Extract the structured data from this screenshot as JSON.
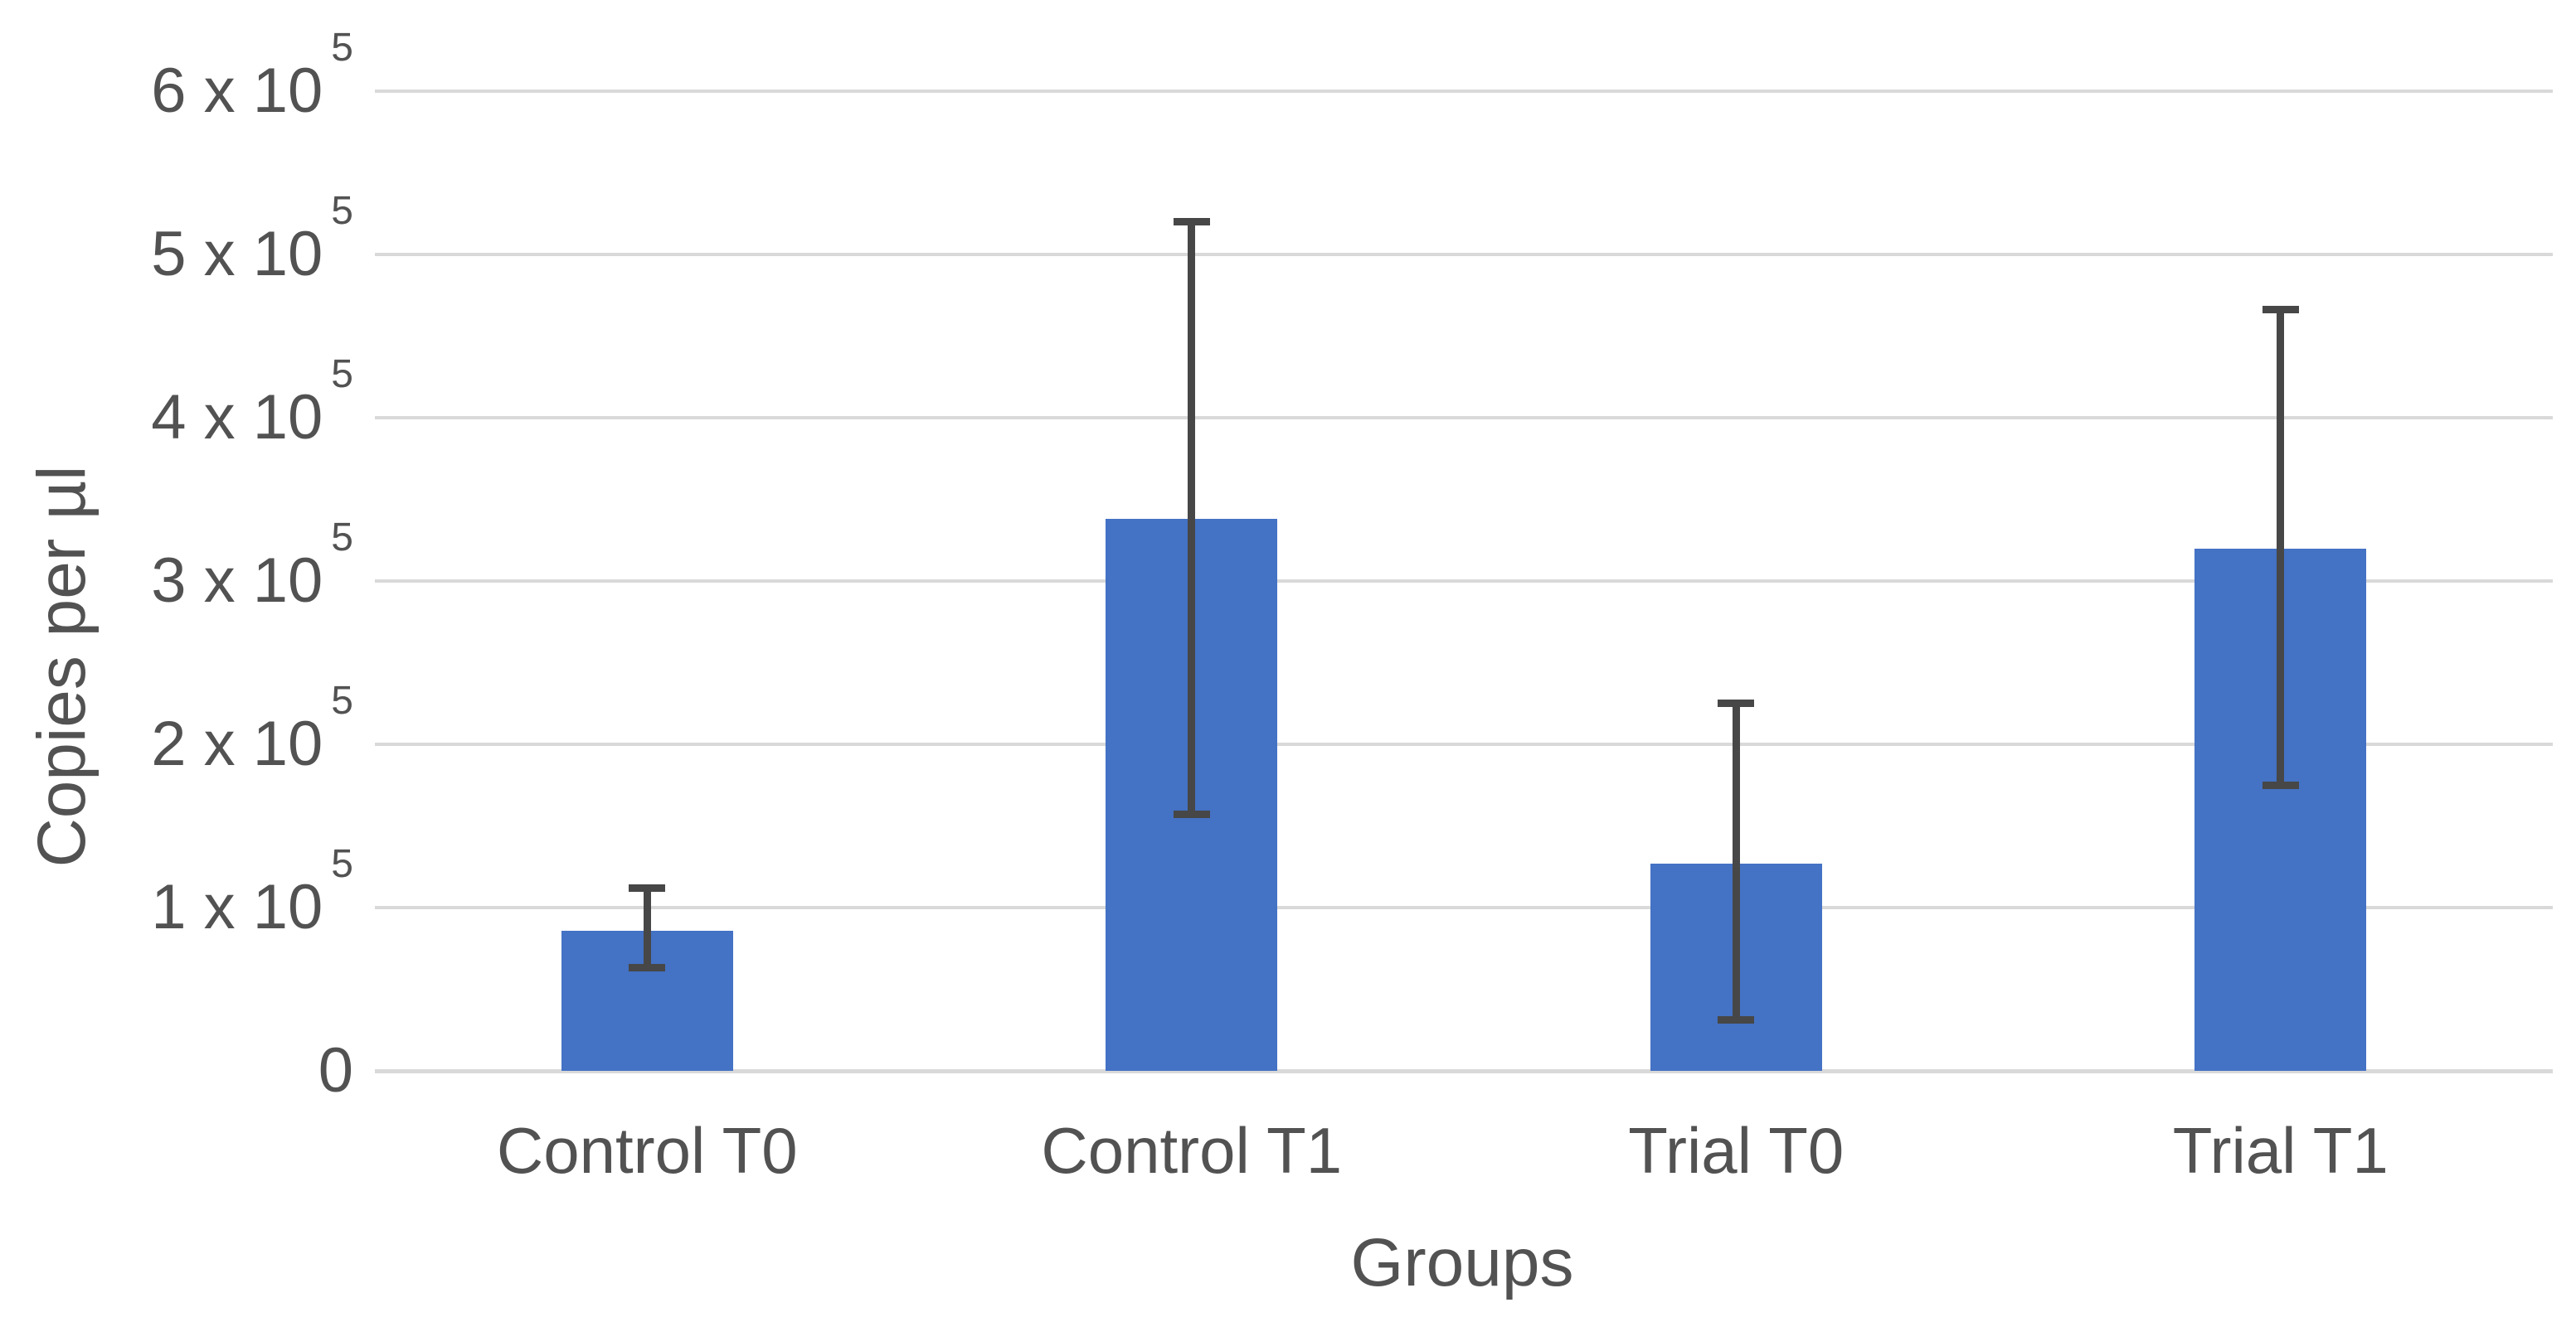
{
  "chart_data": {
    "type": "bar",
    "title": "",
    "xlabel": "Groups",
    "ylabel": "Copies per µl",
    "categories": [
      "Control T0",
      "Control T1",
      "Trial T0",
      "Trial T1"
    ],
    "values": [
      86000,
      338000,
      127000,
      320000
    ],
    "error_bars": {
      "upper": [
        112000,
        520000,
        225000,
        466000
      ],
      "lower": [
        63000,
        157000,
        31000,
        175000
      ]
    },
    "ylim": [
      0,
      600000
    ],
    "ytick_step": 100000,
    "yticks": [
      {
        "text": "0",
        "sup": ""
      },
      {
        "text": "1 x 10",
        "sup": "5"
      },
      {
        "text": "2 x 10",
        "sup": "5"
      },
      {
        "text": "3 x 10",
        "sup": "5"
      },
      {
        "text": "4 x 10",
        "sup": "5"
      },
      {
        "text": "5 x 10",
        "sup": "5"
      },
      {
        "text": "6 x 10",
        "sup": "5"
      }
    ],
    "grid": true,
    "legend": false,
    "bar_color": "#4472C4",
    "error_bar_color": "#474747",
    "gridline_color": "#D9D9D9",
    "axis_line_color": "#D9D9D9",
    "text_color": "#525252"
  }
}
